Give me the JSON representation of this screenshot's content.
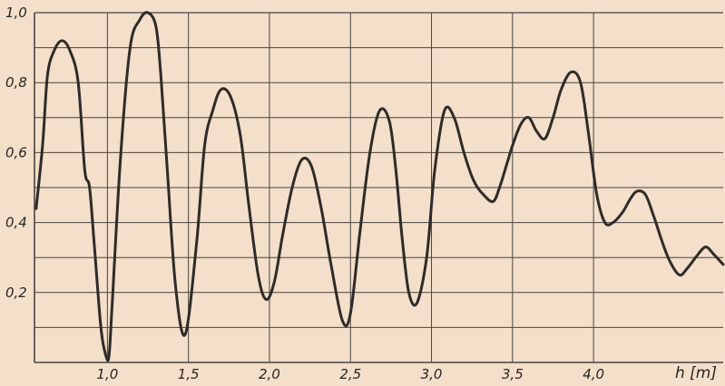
{
  "chart_data": {
    "type": "line",
    "title": "",
    "xlabel": "h [m]",
    "ylabel": "",
    "xlim": [
      0.55,
      4.8
    ],
    "ylim": [
      0.0,
      1.0
    ],
    "grid": true,
    "x_ticks": [
      1.0,
      1.5,
      2.0,
      2.5,
      3.0,
      3.5,
      4.0
    ],
    "x_tick_labels": [
      "1,0",
      "1,5",
      "2,0",
      "2,5",
      "3,0",
      "3,5",
      "4,0"
    ],
    "y_ticks": [
      0.2,
      0.4,
      0.6,
      0.8,
      1.0
    ],
    "y_tick_labels": [
      "0,2",
      "0,4",
      "0,6",
      "0,8",
      "1,0"
    ],
    "colors": {
      "background": "#f3dfca",
      "grid": "#4a443e",
      "line": "#2f2b28",
      "text": "#2a2622"
    },
    "series": [
      {
        "name": "",
        "x": [
          0.56,
          0.6,
          0.63,
          0.67,
          0.72,
          0.77,
          0.82,
          0.86,
          0.89,
          0.92,
          0.96,
          0.99,
          1.01,
          1.03,
          1.08,
          1.14,
          1.2,
          1.25,
          1.3,
          1.33,
          1.37,
          1.42,
          1.48,
          1.55,
          1.6,
          1.65,
          1.7,
          1.76,
          1.82,
          1.87,
          1.93,
          1.98,
          2.03,
          2.08,
          2.14,
          2.2,
          2.26,
          2.32,
          2.38,
          2.45,
          2.5,
          2.56,
          2.62,
          2.68,
          2.74,
          2.78,
          2.82,
          2.86,
          2.91,
          2.97,
          3.02,
          3.08,
          3.14,
          3.2,
          3.26,
          3.32,
          3.38,
          3.42,
          3.46,
          3.5,
          3.55,
          3.6,
          3.65,
          3.7,
          3.75,
          3.8,
          3.86,
          3.92,
          3.97,
          4.02,
          4.07,
          4.12,
          4.18,
          4.23,
          4.27,
          4.32,
          4.37,
          4.42,
          4.47,
          4.53,
          4.58,
          4.63,
          4.69,
          4.74,
          4.8
        ],
        "y": [
          0.44,
          0.62,
          0.82,
          0.89,
          0.92,
          0.89,
          0.8,
          0.55,
          0.5,
          0.33,
          0.1,
          0.02,
          0.02,
          0.17,
          0.58,
          0.9,
          0.98,
          1.0,
          0.96,
          0.82,
          0.55,
          0.22,
          0.08,
          0.34,
          0.62,
          0.72,
          0.78,
          0.76,
          0.65,
          0.46,
          0.25,
          0.18,
          0.23,
          0.36,
          0.5,
          0.58,
          0.56,
          0.44,
          0.28,
          0.12,
          0.14,
          0.38,
          0.6,
          0.72,
          0.69,
          0.55,
          0.35,
          0.2,
          0.17,
          0.3,
          0.55,
          0.72,
          0.7,
          0.6,
          0.52,
          0.48,
          0.46,
          0.5,
          0.56,
          0.62,
          0.68,
          0.7,
          0.66,
          0.64,
          0.7,
          0.78,
          0.83,
          0.8,
          0.65,
          0.48,
          0.4,
          0.4,
          0.43,
          0.47,
          0.49,
          0.48,
          0.42,
          0.35,
          0.29,
          0.25,
          0.27,
          0.3,
          0.33,
          0.31,
          0.28
        ]
      }
    ]
  }
}
